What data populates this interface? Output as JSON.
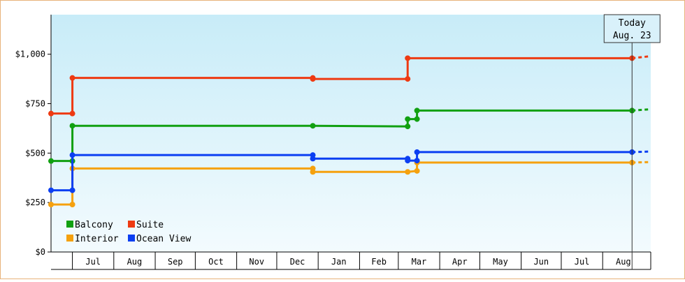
{
  "chart_data": {
    "type": "line",
    "title": "",
    "xlabel": "",
    "ylabel": "",
    "ylim": [
      0,
      1200
    ],
    "grid": false,
    "legend_position": "bottom-left",
    "x_range": [
      "2019-06-15",
      "2020-09-06"
    ],
    "y_ticks": [
      {
        "value": 0,
        "label": "$0"
      },
      {
        "value": 250,
        "label": "$250"
      },
      {
        "value": 500,
        "label": "$500"
      },
      {
        "value": 750,
        "label": "$750"
      },
      {
        "value": 1000,
        "label": "$1,000"
      }
    ],
    "month_ticks": [
      {
        "label": "Jul",
        "start": "2019-07-01",
        "end": "2019-08-01"
      },
      {
        "label": "Aug",
        "start": "2019-08-01",
        "end": "2019-09-01"
      },
      {
        "label": "Sep",
        "start": "2019-09-01",
        "end": "2019-10-01"
      },
      {
        "label": "Oct",
        "start": "2019-10-01",
        "end": "2019-11-01"
      },
      {
        "label": "Nov",
        "start": "2019-11-01",
        "end": "2019-12-01"
      },
      {
        "label": "Dec",
        "start": "2019-12-01",
        "end": "2020-01-01"
      },
      {
        "label": "Jan",
        "start": "2020-01-01",
        "end": "2020-02-01"
      },
      {
        "label": "Feb",
        "start": "2020-02-01",
        "end": "2020-03-01"
      },
      {
        "label": "Mar",
        "start": "2020-03-01",
        "end": "2020-04-01"
      },
      {
        "label": "Apr",
        "start": "2020-04-01",
        "end": "2020-05-01"
      },
      {
        "label": "May",
        "start": "2020-05-01",
        "end": "2020-06-01"
      },
      {
        "label": "Jun",
        "start": "2020-06-01",
        "end": "2020-07-01"
      },
      {
        "label": "Jul",
        "start": "2020-07-01",
        "end": "2020-08-01"
      },
      {
        "label": "Aug",
        "start": "2020-08-01",
        "end": "2020-09-01"
      }
    ],
    "today": {
      "date": "2020-08-23",
      "label_line1": "Today",
      "label_line2": "Aug. 23"
    },
    "series": [
      {
        "name": "Balcony",
        "color": "#11a011",
        "points": [
          {
            "x": "2019-06-15",
            "y": 460
          },
          {
            "x": "2019-07-01",
            "y": 460
          },
          {
            "x": "2019-07-01",
            "y": 638
          },
          {
            "x": "2019-12-28",
            "y": 638
          },
          {
            "x": "2020-03-08",
            "y": 635
          },
          {
            "x": "2020-03-08",
            "y": 672
          },
          {
            "x": "2020-03-15",
            "y": 672
          },
          {
            "x": "2020-03-15",
            "y": 715
          },
          {
            "x": "2020-08-23",
            "y": 715
          }
        ],
        "projection": 722
      },
      {
        "name": "Suite",
        "color": "#ee3a12",
        "points": [
          {
            "x": "2019-06-15",
            "y": 700
          },
          {
            "x": "2019-07-01",
            "y": 700
          },
          {
            "x": "2019-07-01",
            "y": 880
          },
          {
            "x": "2019-12-28",
            "y": 880
          },
          {
            "x": "2019-12-28",
            "y": 875
          },
          {
            "x": "2020-03-08",
            "y": 875
          },
          {
            "x": "2020-03-08",
            "y": 980
          },
          {
            "x": "2020-08-23",
            "y": 980
          }
        ],
        "projection": 990
      },
      {
        "name": "Interior",
        "color": "#f5a10e",
        "points": [
          {
            "x": "2019-06-15",
            "y": 240
          },
          {
            "x": "2019-07-01",
            "y": 240
          },
          {
            "x": "2019-07-01",
            "y": 422
          },
          {
            "x": "2019-12-28",
            "y": 422
          },
          {
            "x": "2019-12-28",
            "y": 405
          },
          {
            "x": "2020-03-08",
            "y": 405
          },
          {
            "x": "2020-03-15",
            "y": 410
          },
          {
            "x": "2020-03-15",
            "y": 452
          },
          {
            "x": "2020-08-23",
            "y": 452
          }
        ],
        "projection": 455
      },
      {
        "name": "Ocean View",
        "color": "#0b3ff2",
        "points": [
          {
            "x": "2019-06-15",
            "y": 312
          },
          {
            "x": "2019-07-01",
            "y": 312
          },
          {
            "x": "2019-07-01",
            "y": 490
          },
          {
            "x": "2019-12-28",
            "y": 490
          },
          {
            "x": "2019-12-28",
            "y": 472
          },
          {
            "x": "2020-03-08",
            "y": 472
          },
          {
            "x": "2020-03-08",
            "y": 462
          },
          {
            "x": "2020-03-15",
            "y": 462
          },
          {
            "x": "2020-03-15",
            "y": 505
          },
          {
            "x": "2020-08-23",
            "y": 505
          }
        ],
        "projection": 508
      }
    ]
  }
}
